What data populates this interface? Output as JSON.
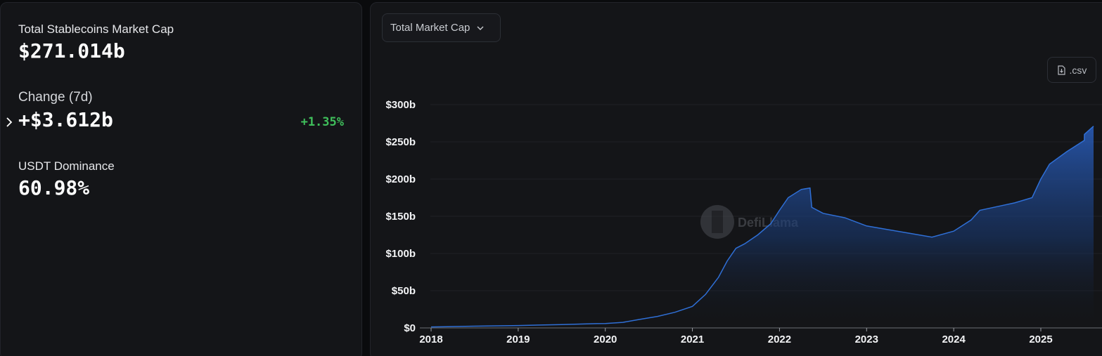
{
  "summary": {
    "market_cap_label": "Total Stablecoins Market Cap",
    "market_cap_value": "$271.014b",
    "change_label": "Change (7d)",
    "change_value": "+$3.612b",
    "change_pct": "+1.35%",
    "dominance_label": "USDT Dominance",
    "dominance_value": "60.98%"
  },
  "controls": {
    "dropdown_label": "Total Market Cap",
    "csv_label": ".csv"
  },
  "watermark": {
    "text": "DefiLlama"
  },
  "colors": {
    "line": "#2f6fd6",
    "positive": "#3fbf5b",
    "background": "#141518"
  },
  "chart_data": {
    "type": "area",
    "title": "",
    "xlabel": "",
    "ylabel": "",
    "ylim": [
      0,
      300
    ],
    "y_ticks": [
      "$0",
      "$50b",
      "$100b",
      "$150b",
      "$200b",
      "$250b",
      "$300b"
    ],
    "x_ticks": [
      "2018",
      "2019",
      "2020",
      "2021",
      "2022",
      "2023",
      "2024",
      "2025"
    ],
    "grid": "horizontal",
    "series": [
      {
        "values_unit": "billion USD",
        "points": [
          [
            2018.0,
            1.3
          ],
          [
            2018.5,
            2.4
          ],
          [
            2019.0,
            3.2
          ],
          [
            2019.5,
            4.5
          ],
          [
            2019.9,
            5.8
          ],
          [
            2020.0,
            5.9
          ],
          [
            2020.2,
            7.5
          ],
          [
            2020.4,
            11.5
          ],
          [
            2020.6,
            15.5
          ],
          [
            2020.8,
            21.0
          ],
          [
            2021.0,
            29.0
          ],
          [
            2021.15,
            45.0
          ],
          [
            2021.3,
            68.0
          ],
          [
            2021.4,
            90.0
          ],
          [
            2021.5,
            107.0
          ],
          [
            2021.6,
            113.0
          ],
          [
            2021.75,
            125.0
          ],
          [
            2021.9,
            140.0
          ],
          [
            2022.0,
            158.0
          ],
          [
            2022.1,
            175.0
          ],
          [
            2022.25,
            186.0
          ],
          [
            2022.35,
            188.0
          ],
          [
            2022.37,
            162.0
          ],
          [
            2022.5,
            154.0
          ],
          [
            2022.75,
            148.0
          ],
          [
            2023.0,
            137.0
          ],
          [
            2023.25,
            132.0
          ],
          [
            2023.5,
            127.0
          ],
          [
            2023.75,
            122.0
          ],
          [
            2024.0,
            130.0
          ],
          [
            2024.2,
            145.0
          ],
          [
            2024.3,
            158.0
          ],
          [
            2024.5,
            163.0
          ],
          [
            2024.7,
            168.0
          ],
          [
            2024.9,
            175.0
          ],
          [
            2025.0,
            200.0
          ],
          [
            2025.1,
            220.0
          ],
          [
            2025.3,
            237.0
          ],
          [
            2025.5,
            252.0
          ],
          [
            2025.6,
            260.0
          ],
          [
            2025.6,
            271.0
          ]
        ]
      }
    ]
  }
}
